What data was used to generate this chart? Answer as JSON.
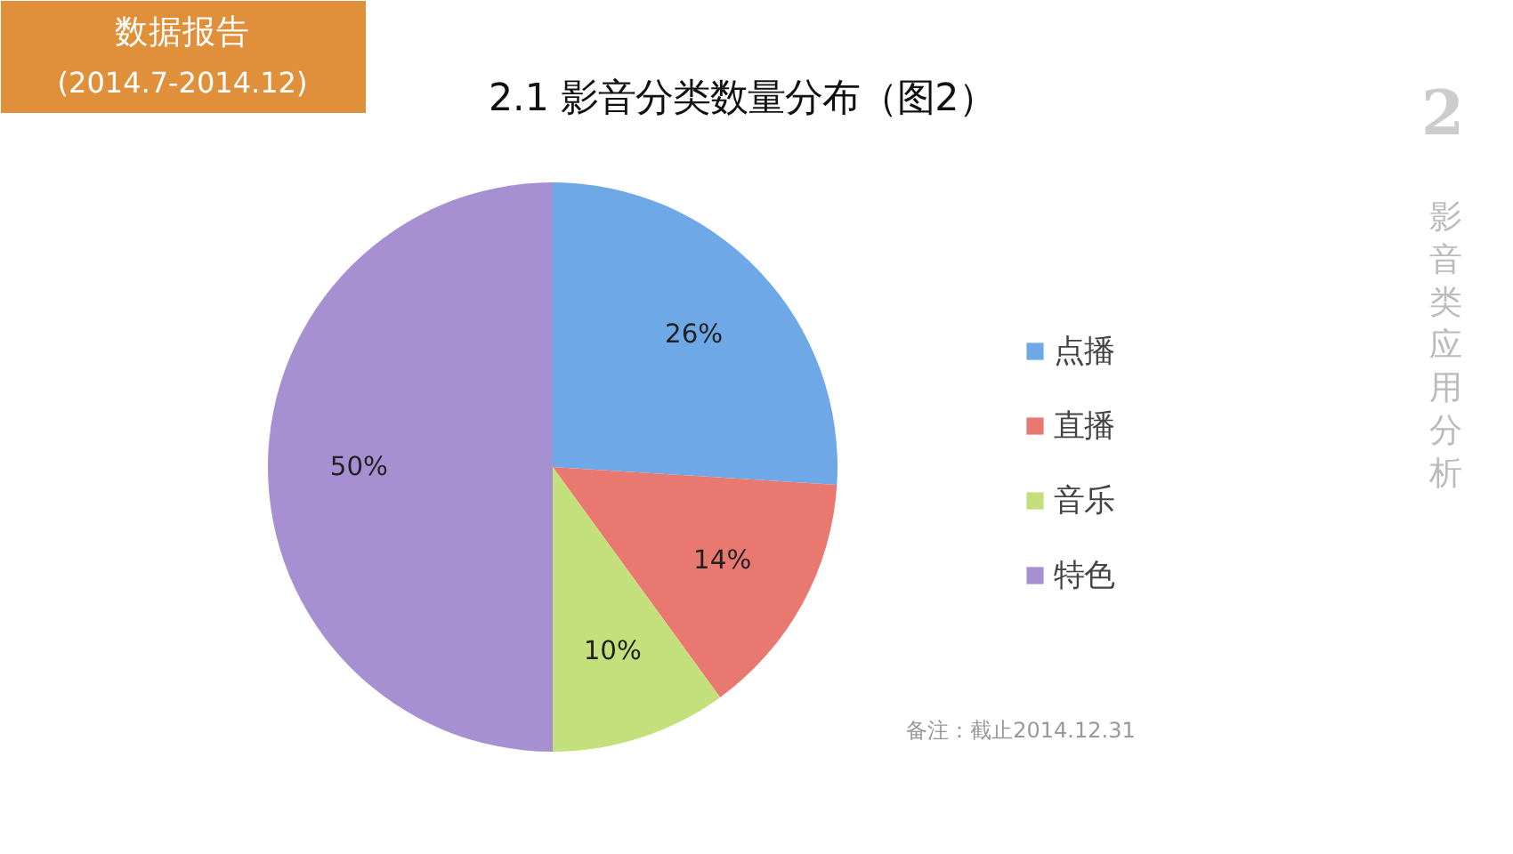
{
  "chart_data": {
    "type": "pie",
    "title": "2.1  影音分类数量分布（图2）",
    "categories": [
      "点播",
      "直播",
      "音乐",
      "特色"
    ],
    "values": [
      26,
      14,
      10,
      50
    ],
    "colors": [
      "#6fa8e6",
      "#e87870",
      "#c4e07c",
      "#a690d2"
    ],
    "value_labels": [
      "26%",
      "14%",
      "10%",
      "50%"
    ],
    "legend": "right",
    "annotations": [
      "数据报告",
      "(2014.7-2014.12)",
      "2",
      "影音类应用分析",
      "备注：截止2014.12.31"
    ]
  }
}
